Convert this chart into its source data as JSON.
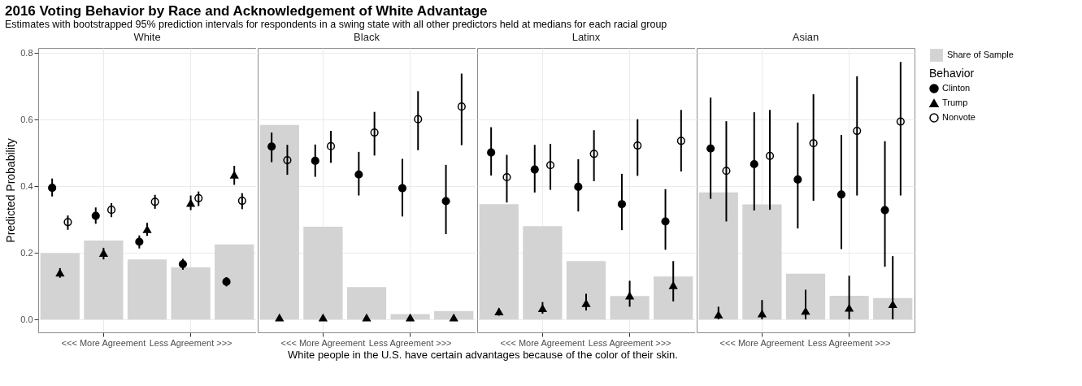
{
  "chart_data": [
    {
      "type": "bar",
      "title": "White",
      "annotations": [
        "2016 Voting Behavior by Race and Acknowledgement of White Advantage",
        "Estimates with bootstrapped 95% prediction intervals for respondents in a swing state with all other predictors held at medians for each racial group"
      ],
      "xlabel": "White people in the U.S. have certain advantages because of the color of their skin.",
      "ylabel": "Predicted Probability",
      "categories": [
        null,
        "<<< More Agreement",
        null,
        "Less Agreement >>>",
        null
      ],
      "ylim": [
        -0.039,
        0.815
      ],
      "yticks": [
        {
          "value": 0,
          "label": "0.0"
        },
        0.2,
        0.4,
        0.6,
        0.8
      ],
      "grid": true,
      "series": [
        {
          "type": "bar",
          "color": "#d3d3d3",
          "values": [
            0.199,
            0.237,
            0.18,
            0.156,
            0.225
          ]
        },
        {
          "type": "scatter",
          "marker": "circle",
          "color": "#000000",
          "values": [
            0.395,
            0.311,
            0.233,
            0.166,
            0.113
          ],
          "errors": [
            [
              0.369,
              0.423
            ],
            [
              0.287,
              0.336
            ],
            [
              0.213,
              0.252
            ],
            [
              0.149,
              0.182
            ],
            [
              0.099,
              0.127
            ]
          ]
        },
        {
          "type": "scatter",
          "marker": "triangle",
          "color": "#000000",
          "values": [
            0.14,
            0.199,
            0.27,
            0.349,
            0.434
          ],
          "errors": [
            [
              0.125,
              0.154
            ],
            [
              0.18,
              0.215
            ],
            [
              0.251,
              0.29
            ],
            [
              0.328,
              0.372
            ],
            [
              0.404,
              0.461
            ]
          ]
        },
        {
          "type": "scatter",
          "marker": "circle",
          "color": "#000000",
          "values": [
            0.292,
            0.329,
            0.353,
            0.364,
            0.356
          ],
          "errors": [
            [
              0.269,
              0.312
            ],
            [
              0.307,
              0.349
            ],
            [
              0.332,
              0.374
            ],
            [
              0.34,
              0.384
            ],
            [
              0.331,
              0.379
            ]
          ]
        }
      ]
    },
    {
      "type": "bar",
      "title": "Black",
      "categories": [
        null,
        "<<< More Agreement",
        null,
        "Less Agreement >>>",
        null
      ],
      "ylim": [
        -0.039,
        0.815
      ],
      "yticks": [
        0,
        0.2,
        0.4,
        0.6,
        0.8
      ],
      "grid": true,
      "tick_labels": "x",
      "series": [
        {
          "type": "bar",
          "color": "#d3d3d3",
          "values": [
            0.584,
            0.278,
            0.097,
            0.016,
            0.025
          ]
        },
        {
          "type": "scatter",
          "marker": "circle",
          "color": "#000000",
          "values": [
            0.519,
            0.476,
            0.435,
            0.394,
            0.355
          ],
          "errors": [
            [
              0.472,
              0.561
            ],
            [
              0.428,
              0.525
            ],
            [
              0.372,
              0.503
            ],
            [
              0.309,
              0.482
            ],
            [
              0.256,
              0.464
            ]
          ]
        },
        {
          "type": "scatter",
          "marker": "triangle",
          "color": "#000000",
          "values": [
            0.005,
            0.005,
            0.005,
            0.005,
            0.005
          ]
        },
        {
          "type": "scatter",
          "marker": "circle",
          "color": "#000000",
          "values": [
            0.478,
            0.52,
            0.561,
            0.601,
            0.639
          ],
          "errors": [
            [
              0.434,
              0.524
            ],
            [
              0.47,
              0.566
            ],
            [
              0.492,
              0.623
            ],
            [
              0.508,
              0.685
            ],
            [
              0.523,
              0.738
            ]
          ]
        }
      ]
    },
    {
      "type": "bar",
      "title": "Latinx",
      "categories": [
        null,
        "<<< More Agreement",
        null,
        "Less Agreement >>>",
        null
      ],
      "ylim": [
        -0.039,
        0.815
      ],
      "yticks": [
        0,
        0.2,
        0.4,
        0.6,
        0.8
      ],
      "grid": true,
      "tick_labels": "x",
      "series": [
        {
          "type": "bar",
          "color": "#d3d3d3",
          "values": [
            0.346,
            0.28,
            0.175,
            0.07,
            0.129
          ]
        },
        {
          "type": "scatter",
          "marker": "circle",
          "color": "#000000",
          "values": [
            0.501,
            0.45,
            0.398,
            0.346,
            0.294
          ],
          "errors": [
            [
              0.432,
              0.577
            ],
            [
              0.381,
              0.524
            ],
            [
              0.324,
              0.481
            ],
            [
              0.268,
              0.437
            ],
            [
              0.209,
              0.391
            ]
          ]
        },
        {
          "type": "scatter",
          "marker": "triangle",
          "color": "#000000",
          "values": [
            0.023,
            0.033,
            0.048,
            0.071,
            0.102
          ],
          "errors": [
            [
              0.011,
              0.033
            ],
            [
              0.017,
              0.052
            ],
            [
              0.027,
              0.077
            ],
            [
              0.038,
              0.116
            ],
            [
              0.054,
              0.175
            ]
          ]
        },
        {
          "type": "scatter",
          "marker": "circle",
          "color": "#000000",
          "values": [
            0.427,
            0.463,
            0.497,
            0.522,
            0.536
          ],
          "errors": [
            [
              0.351,
              0.494
            ],
            [
              0.389,
              0.527
            ],
            [
              0.415,
              0.568
            ],
            [
              0.431,
              0.601
            ],
            [
              0.444,
              0.629
            ]
          ]
        }
      ]
    },
    {
      "type": "bar",
      "title": "Asian",
      "categories": [
        null,
        "<<< More Agreement",
        null,
        "Less Agreement >>>",
        null
      ],
      "ylim": [
        -0.039,
        0.815
      ],
      "yticks": [
        0,
        0.2,
        0.4,
        0.6,
        0.8
      ],
      "grid": true,
      "tick_labels": "x",
      "legend": "right",
      "legend_title": "Behavior",
      "series": [
        {
          "name": "Share of Sample",
          "type": "bar",
          "color": "#d3d3d3",
          "values": [
            0.381,
            0.345,
            0.137,
            0.071,
            0.064
          ]
        },
        {
          "name": "Clinton",
          "type": "scatter",
          "marker": "circle",
          "color": "#000000",
          "values": [
            0.513,
            0.466,
            0.42,
            0.375,
            0.328
          ],
          "errors": [
            [
              0.362,
              0.666
            ],
            [
              0.327,
              0.622
            ],
            [
              0.273,
              0.591
            ],
            [
              0.211,
              0.554
            ],
            [
              0.158,
              0.535
            ]
          ]
        },
        {
          "name": "Trump",
          "type": "scatter",
          "marker": "triangle",
          "color": "#000000",
          "values": [
            0.014,
            0.017,
            0.025,
            0.034,
            0.045
          ],
          "errors": [
            [
              0,
              0.038
            ],
            [
              0,
              0.058
            ],
            [
              0,
              0.089
            ],
            [
              0,
              0.131
            ],
            [
              0,
              0.19
            ]
          ]
        },
        {
          "name": "Nonvote",
          "type": "scatter",
          "marker": "circle",
          "color": "#000000",
          "values": [
            0.446,
            0.491,
            0.529,
            0.566,
            0.594
          ],
          "errors": [
            [
              0.294,
              0.595
            ],
            [
              0.329,
              0.629
            ],
            [
              0.356,
              0.676
            ],
            [
              0.372,
              0.73
            ],
            [
              0.372,
              0.773
            ]
          ]
        }
      ]
    }
  ]
}
